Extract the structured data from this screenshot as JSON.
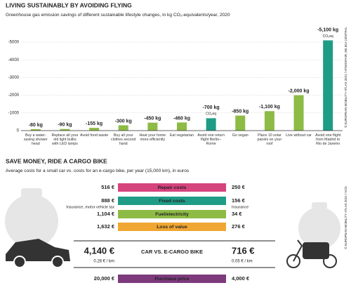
{
  "chart_data": {
    "type": "bar",
    "title": "LIVING SUSTAINABLY BY AVOIDING FLYING",
    "subtitle": "Greenhouse gas emission savings of different sustainable lifestyle changes, in kg CO₂-equivalents/year, 2020",
    "categories": [
      "Buy a water-saving shower head",
      "Replace all your old light bulbs with LED lamps",
      "Avoid food waste",
      "Buy all your clothes second hand",
      "Heat your home more efficiently",
      "Eat vegetarian",
      "Avoid one return flight Berlin–Rome",
      "Go vegan",
      "Place 10 solar panels on your roof",
      "Live without car",
      "Avoid one flight from Madrid to Rio de Janeiro"
    ],
    "values": [
      -80,
      -90,
      -155,
      -300,
      -450,
      -460,
      -700,
      -850,
      -1100,
      -2000,
      -5100
    ],
    "value_labels": [
      "-80 kg",
      "-90 kg",
      "-155 kg",
      "-300 kg",
      "-450 kg",
      "-460 kg",
      "-700 kg",
      "-850 kg",
      "-1,100 kg",
      "-2,000 kg",
      "-5,100 kg"
    ],
    "value_sublabels": [
      null,
      null,
      null,
      null,
      null,
      null,
      "CO₂eq",
      null,
      null,
      null,
      "CO₂eq"
    ],
    "colors": [
      "#8dbb45",
      "#8dbb45",
      "#8dbb45",
      "#8dbb45",
      "#8dbb45",
      "#8dbb45",
      "#1f9c86",
      "#8dbb45",
      "#8dbb45",
      "#8dbb45",
      "#1f9c86"
    ],
    "label_colors": [
      "#6aa22e",
      "#6aa22e",
      "#6aa22e",
      "#6aa22e",
      "#6aa22e",
      "#6aa22e",
      "#c0392b",
      "#6aa22e",
      "#6aa22e",
      "#6aa22e",
      "#c0392b"
    ],
    "ylim": [
      0,
      -5500
    ],
    "yticks": [
      -5000,
      -4000,
      -3000,
      -2000,
      -1000,
      0
    ],
    "grid": true
  },
  "costs": {
    "title": "SAVE MONEY, RIDE A CARGO BIKE",
    "subtitle": "Average costs for a small car vs. costs for an e-cargo bike, per year (15,000 km), in euros",
    "rows": [
      {
        "car": "516 €",
        "label": "Repair costs",
        "bike": "250 €",
        "color": "#d6447e"
      },
      {
        "car": "888 €",
        "label": "Fixed costs",
        "bike": "156 €",
        "color": "#1f9c86",
        "car_note": "Insurance, motor vehicle tax",
        "bike_note": "Insurance"
      },
      {
        "car": "1,104 €",
        "label": "Fuel/electricity",
        "bike": "34 €",
        "color": "#8dbb45"
      },
      {
        "car": "1,632 €",
        "label": "Loss of value",
        "bike": "276 €",
        "color": "#f0a632"
      }
    ],
    "total": {
      "car": "4,140 €",
      "label": "CAR VS. E-CARGO BIKE",
      "bike": "716 €",
      "car_per_km": "0.28 € / km",
      "bike_per_km": "0.05 € / km"
    },
    "purchase": {
      "car": "20,000 €",
      "label": "Purchase price",
      "bike": "4,000 €",
      "color": "#7c3a7c"
    }
  },
  "credits": [
    "© EUROPEAN MOBILITY ATLAS 2021 / ATMOSFAIR, MILIEU CENTRAL",
    "© EUROPEAN MOBILITY ATLAS 2021 / VCD"
  ]
}
